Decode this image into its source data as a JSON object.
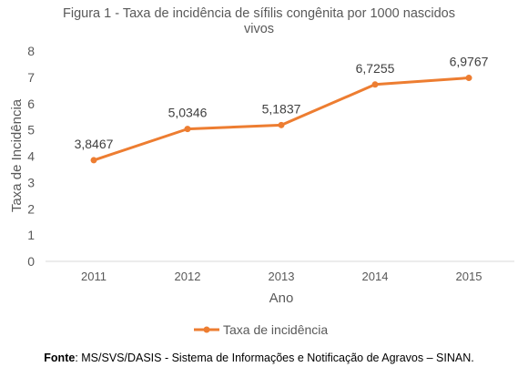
{
  "chart_data": {
    "type": "line",
    "title_lines": [
      "Figura 1 - Taxa de incidência de sífilis congênita por 1000 nascidos",
      "vivos"
    ],
    "xlabel": "Ano",
    "ylabel": "Taxa de Incidência",
    "categories": [
      "2011",
      "2012",
      "2013",
      "2014",
      "2015"
    ],
    "series": [
      {
        "name": "Taxa de incidência",
        "values": [
          3.8467,
          5.0346,
          5.1837,
          6.7255,
          6.9767
        ],
        "labels": [
          "3,8467",
          "5,0346",
          "5,1837",
          "6,7255",
          "6,9767"
        ],
        "color": "#ED7D31"
      }
    ],
    "ylim": [
      0,
      8
    ],
    "yticks": [
      "0",
      "1",
      "2",
      "3",
      "4",
      "5",
      "6",
      "7",
      "8"
    ],
    "grid": false,
    "legend_position": "bottom"
  },
  "source": {
    "label": "Fonte",
    "text": ": MS/SVS/DASIS - Sistema de Informações e Notificação de Agravos – SINAN."
  }
}
